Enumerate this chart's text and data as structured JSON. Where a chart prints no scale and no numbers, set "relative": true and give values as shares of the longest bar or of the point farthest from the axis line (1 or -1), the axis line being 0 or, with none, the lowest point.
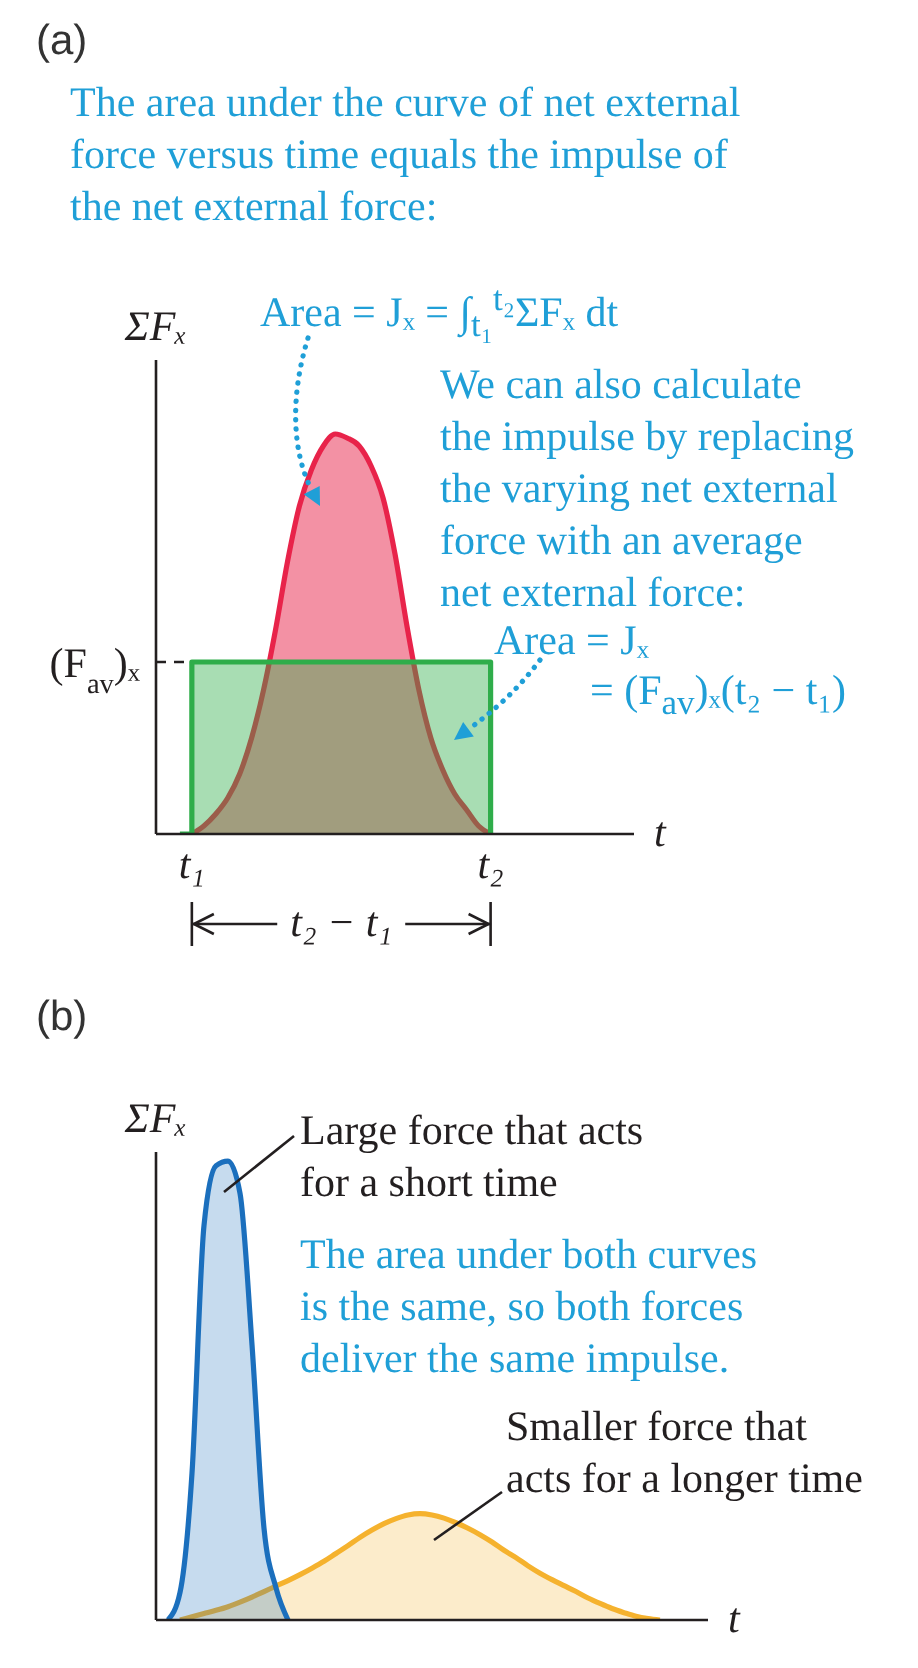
{
  "chart_data": [
    {
      "type": "area",
      "title": "(a)",
      "xlabel": "t",
      "ylabel": "ΣFₓ",
      "relative": true,
      "categories": [
        null,
        null,
        null,
        "t₁",
        null,
        null,
        null,
        null,
        null,
        null,
        null,
        null,
        null,
        null,
        null,
        null,
        null,
        null,
        null,
        null,
        null,
        null,
        null,
        null,
        null,
        null,
        null,
        null,
        "t₂",
        null,
        null,
        null,
        null,
        null,
        null,
        null,
        null,
        null,
        null,
        null,
        null
      ],
      "series": [
        {
          "color": "#e8234a",
          "values": [
            null,
            null,
            null,
            0,
            0.02,
            0.05,
            0.09,
            0.15,
            0.24,
            0.36,
            0.51,
            0.68,
            0.82,
            0.91,
            0.97,
            1,
            0.99,
            0.97,
            0.92,
            0.84,
            0.7,
            0.52,
            0.36,
            0.24,
            0.16,
            0.1,
            0.06,
            0.02,
            0,
            null,
            null,
            null,
            null,
            null,
            null,
            null,
            null,
            null,
            null,
            null,
            null
          ]
        },
        {
          "type": "step",
          "color": "#2fad4a",
          "values": [
            null,
            null,
            0,
            0.43,
            0.43,
            0.43,
            0.43,
            0.43,
            0.43,
            0.43,
            0.43,
            0.43,
            0.43,
            0.43,
            0.43,
            0.43,
            0.43,
            0.43,
            0.43,
            0.43,
            0.43,
            0.43,
            0.43,
            0.43,
            0.43,
            0.43,
            0.43,
            0.43,
            0,
            null,
            null,
            null,
            null,
            null,
            null,
            null,
            null,
            null,
            null,
            null,
            null
          ]
        }
      ],
      "ref_lines": [
        {
          "axis": "y",
          "value": 0.43,
          "label": "(F$_{av}$)ₓ",
          "line_style": "dashed",
          "color": "#231f20"
        }
      ],
      "annotations": [
        "The area under the curve of net external force versus time equals the impulse of the net external force:",
        "Area = Jₓ = ∫$_{t₁}$$^{t₂}$ΣFₓ dt",
        "We can also calculate the impulse by replacing the varying net external force with an average net external force:",
        "Area = Jₓ",
        "= (F$_{av}$)ₓ(t₂ − t₁)",
        "t₂ − t₁"
      ]
    },
    {
      "type": "area",
      "title": "(b)",
      "xlabel": "t",
      "ylabel": "ΣFₓ",
      "relative": true,
      "categories": [
        null,
        null,
        null,
        null,
        null,
        null,
        null,
        null,
        null,
        null,
        null,
        null,
        null,
        null,
        null,
        null,
        null,
        null,
        null,
        null,
        null,
        null,
        null,
        null,
        null,
        null,
        null,
        null,
        null,
        null,
        null,
        null,
        null,
        null,
        null,
        null,
        null,
        null,
        null,
        null,
        null,
        null,
        null,
        null,
        null,
        null,
        null
      ],
      "series": [
        {
          "color": "#f5b22e",
          "values": [
            null,
            null,
            0,
            0.007,
            0.014,
            0.021,
            0.029,
            0.039,
            0.05,
            0.062,
            0.074,
            0.086,
            0.099,
            0.113,
            0.128,
            0.145,
            0.162,
            0.18,
            0.196,
            0.21,
            0.221,
            0.229,
            0.232,
            0.229,
            0.222,
            0.212,
            0.2,
            0.186,
            0.17,
            0.152,
            0.136,
            0.118,
            0.102,
            0.088,
            0.075,
            0.062,
            0.048,
            0.036,
            0.025,
            0.016,
            0.008,
            0.003,
            0,
            null,
            null,
            null,
            null
          ]
        },
        {
          "color": "#1b6fbd",
          "values": [
            null,
            0,
            0.06,
            0.32,
            0.86,
            0.99,
            1,
            0.93,
            0.6,
            0.2,
            0.07,
            0,
            null,
            null,
            null,
            null,
            null,
            null,
            null,
            null,
            null,
            null,
            null,
            null,
            null,
            null,
            null,
            null,
            null,
            null,
            null,
            null,
            null,
            null,
            null,
            null,
            null,
            null,
            null,
            null,
            null,
            null,
            null,
            null,
            null,
            null,
            null
          ]
        }
      ],
      "annotations": [
        "Large force that acts for a short time",
        "The area under both curves is the same, so both forces deliver the same impulse.",
        "Smaller force that acts for a longer time"
      ]
    }
  ]
}
